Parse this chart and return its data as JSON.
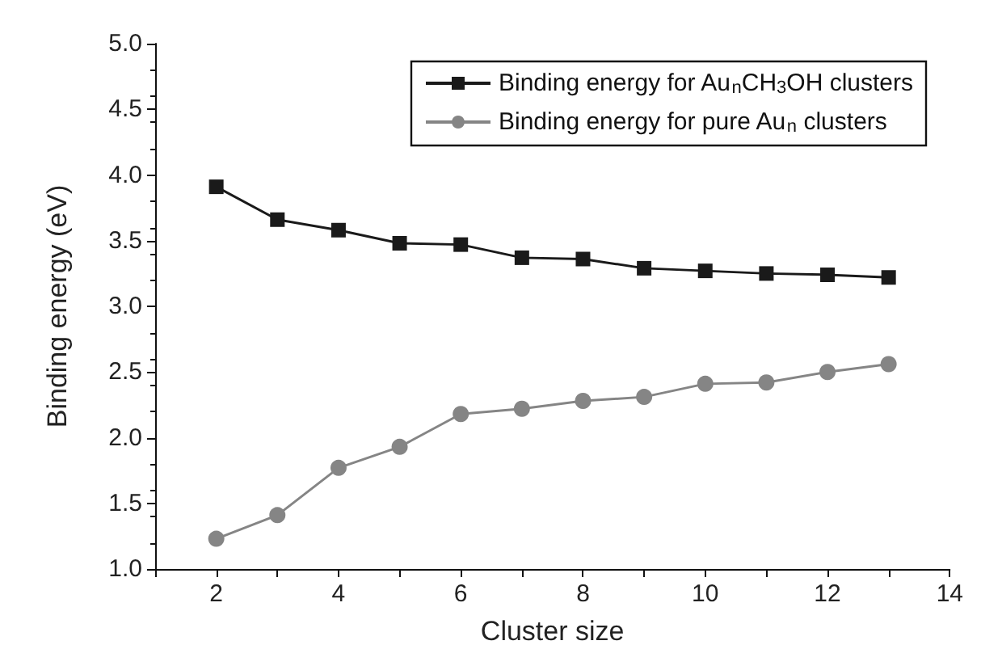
{
  "chart_data": {
    "type": "line",
    "xlabel": "Cluster size",
    "ylabel": "Binding energy (eV)",
    "x": [
      2,
      3,
      4,
      5,
      6,
      7,
      8,
      9,
      10,
      11,
      12,
      13
    ],
    "series": [
      {
        "name": "Binding energy for Au$_{n}$CH$_{3}$OH clusters",
        "color": "#1a1a1a",
        "marker": "square",
        "values": [
          3.91,
          3.66,
          3.58,
          3.48,
          3.47,
          3.37,
          3.36,
          3.29,
          3.27,
          3.25,
          3.24,
          3.22
        ]
      },
      {
        "name": "Binding energy for pure Au$_{n}$ clusters",
        "color": "#858585",
        "marker": "circle",
        "values": [
          1.23,
          1.41,
          1.77,
          1.93,
          2.18,
          2.22,
          2.28,
          2.31,
          2.41,
          2.42,
          2.5,
          2.56
        ]
      }
    ],
    "xlim": [
      1,
      14
    ],
    "xticks": [
      {
        "value": 1,
        "label": null
      },
      2,
      {
        "value": 3,
        "label": null
      },
      4,
      {
        "value": 5,
        "label": null
      },
      6,
      {
        "value": 7,
        "label": null
      },
      8,
      {
        "value": 9,
        "label": null
      },
      10,
      {
        "value": 11,
        "label": null
      },
      12,
      {
        "value": 13,
        "label": null
      },
      14
    ],
    "ylim": [
      1,
      5
    ],
    "yticks": [
      {
        "value": 1,
        "label": "1.0"
      },
      {
        "value": 1.5,
        "label": "1.5"
      },
      {
        "value": 2,
        "label": "2.0"
      },
      {
        "value": 2.5,
        "label": "2.5"
      },
      {
        "value": 3,
        "label": "3.0"
      },
      {
        "value": 3.5,
        "label": "3.5"
      },
      {
        "value": 4,
        "label": "4.0"
      },
      {
        "value": 4.5,
        "label": "4.5"
      },
      {
        "value": 5,
        "label": "5.0"
      }
    ],
    "grid": false,
    "legend": "top right",
    "line_style": "solid"
  }
}
